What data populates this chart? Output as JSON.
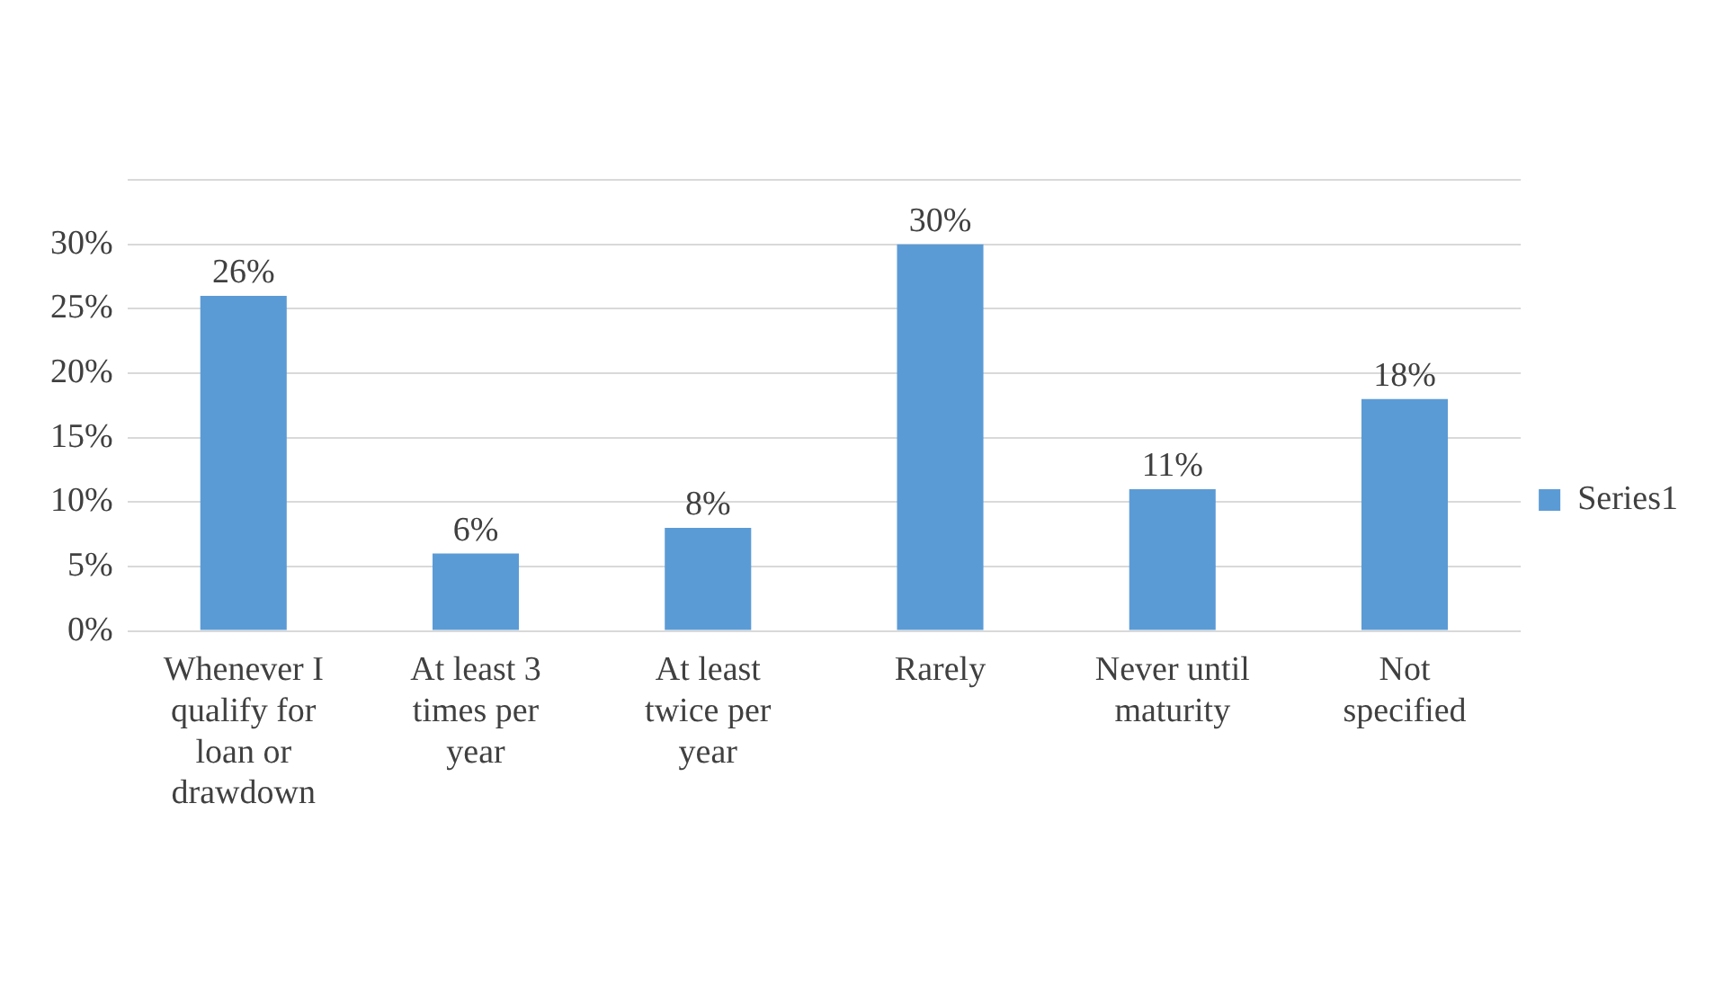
{
  "chart_data": {
    "type": "bar",
    "categories": [
      "Whenever I qualify for loan or drawdown",
      "At least 3 times per year",
      "At least twice per year",
      "Rarely",
      "Never until maturity",
      "Not specified"
    ],
    "series": [
      {
        "name": "Series1",
        "color": "#5b9bd5",
        "values": [
          26,
          6,
          8,
          30,
          11,
          18
        ],
        "value_labels": [
          "26%",
          "6%",
          "8%",
          "30%",
          "11%",
          "18%"
        ]
      }
    ],
    "ylim": [
      0,
      35
    ],
    "yticks": [
      {
        "value": 0,
        "label": "0%"
      },
      {
        "value": 5,
        "label": "5%"
      },
      {
        "value": 10,
        "label": "10%"
      },
      {
        "value": 15,
        "label": "15%"
      },
      {
        "value": 20,
        "label": "20%"
      },
      {
        "value": 25,
        "label": "25%"
      },
      {
        "value": 30,
        "label": "30%"
      },
      {
        "value": 35,
        "label": null
      }
    ],
    "grid": "y",
    "legend": "right"
  }
}
